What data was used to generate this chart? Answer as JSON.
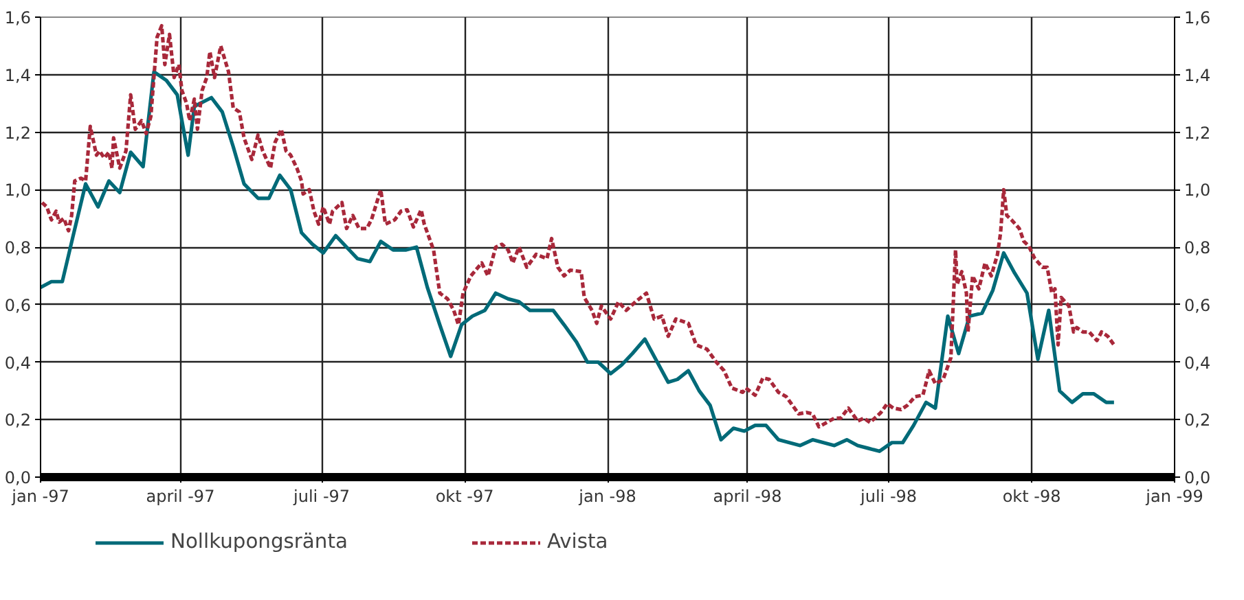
{
  "chart_data": {
    "type": "line",
    "xlim": [
      "1997-01-01",
      "1999-01-01"
    ],
    "xticks": [
      {
        "value": "1997-01-01",
        "label": "jan -97"
      },
      {
        "value": "1997-04-01",
        "label": "april -97"
      },
      {
        "value": "1997-07-01",
        "label": "juli -97"
      },
      {
        "value": "1997-10-01",
        "label": "okt -97"
      },
      {
        "value": "1998-01-01",
        "label": "jan -98"
      },
      {
        "value": "1998-04-01",
        "label": "april -98"
      },
      {
        "value": "1998-07-01",
        "label": "juli -98"
      },
      {
        "value": "1998-10-01",
        "label": "okt -98"
      },
      {
        "value": "1999-01-01",
        "label": "jan -99"
      }
    ],
    "ylim": [
      0,
      1.6
    ],
    "yticks": [
      {
        "value": 0,
        "label": "0,0"
      },
      {
        "value": 0.2,
        "label": "0,2"
      },
      {
        "value": 0.4,
        "label": "0,4"
      },
      {
        "value": 0.6,
        "label": "0,6"
      },
      {
        "value": 0.8,
        "label": "0,8"
      },
      {
        "value": 1.0,
        "label": "1,0"
      },
      {
        "value": 1.2,
        "label": "1,2"
      },
      {
        "value": 1.4,
        "label": "1,4"
      },
      {
        "value": 1.6,
        "label": "1,6"
      }
    ],
    "y2lim": [
      0,
      1.6
    ],
    "y2ticks": [
      {
        "value": 0,
        "label": "0,0"
      },
      {
        "value": 0.2,
        "label": "0,2"
      },
      {
        "value": 0.4,
        "label": "0,4"
      },
      {
        "value": 0.6,
        "label": "0,6"
      },
      {
        "value": 0.8,
        "label": "0,8"
      },
      {
        "value": 1.0,
        "label": "1,0"
      },
      {
        "value": 1.2,
        "label": "1,2"
      },
      {
        "value": 1.4,
        "label": "1,4"
      },
      {
        "value": 1.6,
        "label": "1,6"
      }
    ],
    "grid": true,
    "legend": "bottom",
    "marker": "none",
    "series": [
      {
        "name": "Nollkupongsränta",
        "color": "#006a78",
        "line_style": "solid",
        "x": [
          "1997-01-01",
          "1997-01-08",
          "1997-01-15",
          "1997-01-22",
          "1997-01-30",
          "1997-02-07",
          "1997-02-14",
          "1997-02-21",
          "1997-02-28",
          "1997-03-08",
          "1997-03-15",
          "1997-03-23",
          "1997-03-30",
          "1997-04-06",
          "1997-04-10",
          "1997-04-21",
          "1997-04-28",
          "1997-05-05",
          "1997-05-12",
          "1997-05-21",
          "1997-05-28",
          "1997-06-04",
          "1997-06-11",
          "1997-06-18",
          "1997-06-25",
          "1997-07-02",
          "1997-07-10",
          "1997-07-17",
          "1997-07-24",
          "1997-08-01",
          "1997-08-08",
          "1997-08-16",
          "1997-08-24",
          "1997-08-31",
          "1997-09-07",
          "1997-09-15",
          "1997-09-22",
          "1997-09-29",
          "1997-10-06",
          "1997-10-14",
          "1997-10-21",
          "1997-10-29",
          "1997-11-05",
          "1997-11-12",
          "1997-11-20",
          "1997-11-27",
          "1997-12-04",
          "1997-12-12",
          "1997-12-19",
          "1997-12-26",
          "1998-01-03",
          "1998-01-10",
          "1998-01-17",
          "1998-01-25",
          "1998-02-02",
          "1998-02-09",
          "1998-02-15",
          "1998-02-22",
          "1998-03-01",
          "1998-03-08",
          "1998-03-15",
          "1998-03-23",
          "1998-03-30",
          "1998-04-06",
          "1998-04-13",
          "1998-04-21",
          "1998-04-28",
          "1998-05-05",
          "1998-05-13",
          "1998-05-20",
          "1998-05-27",
          "1998-06-04",
          "1998-06-11",
          "1998-06-18",
          "1998-06-25",
          "1998-07-03",
          "1998-07-10",
          "1998-07-17",
          "1998-07-25",
          "1998-07-31",
          "1998-08-08",
          "1998-08-15",
          "1998-08-22",
          "1998-08-30",
          "1998-09-06",
          "1998-09-13",
          "1998-09-20",
          "1998-09-28",
          "1998-10-05",
          "1998-10-12",
          "1998-10-19",
          "1998-10-27",
          "1998-11-03",
          "1998-11-10",
          "1998-11-18",
          "1998-11-23"
        ],
        "values": [
          0.66,
          0.68,
          0.68,
          0.84,
          1.02,
          0.94,
          1.03,
          0.99,
          1.13,
          1.08,
          1.41,
          1.38,
          1.33,
          1.12,
          1.29,
          1.32,
          1.27,
          1.15,
          1.02,
          0.97,
          0.97,
          1.05,
          1.0,
          0.85,
          0.81,
          0.78,
          0.84,
          0.8,
          0.76,
          0.75,
          0.82,
          0.79,
          0.79,
          0.8,
          0.66,
          0.53,
          0.42,
          0.53,
          0.56,
          0.58,
          0.64,
          0.62,
          0.61,
          0.58,
          0.58,
          0.58,
          0.53,
          0.47,
          0.4,
          0.4,
          0.36,
          0.39,
          0.43,
          0.48,
          0.4,
          0.33,
          0.34,
          0.37,
          0.3,
          0.25,
          0.13,
          0.17,
          0.16,
          0.18,
          0.18,
          0.13,
          0.12,
          0.11,
          0.13,
          0.12,
          0.11,
          0.13,
          0.11,
          0.1,
          0.09,
          0.12,
          0.12,
          0.18,
          0.26,
          0.24,
          0.56,
          0.43,
          0.56,
          0.57,
          0.65,
          0.78,
          0.71,
          0.64,
          0.41,
          0.58,
          0.3,
          0.26,
          0.29,
          0.29,
          0.26,
          0.26
        ]
      },
      {
        "name": "Avista",
        "color": "#a8283a",
        "line_style": "dashed",
        "x": [
          "1997-01-02",
          "1997-01-05",
          "1997-01-08",
          "1997-01-11",
          "1997-01-13",
          "1997-01-16",
          "1997-01-19",
          "1997-01-21",
          "1997-01-23",
          "1997-01-27",
          "1997-01-30",
          "1997-02-02",
          "1997-02-06",
          "1997-02-08",
          "1997-02-11",
          "1997-02-14",
          "1997-02-16",
          "1997-02-17",
          "1997-02-21",
          "1997-02-25",
          "1997-02-28",
          "1997-03-03",
          "1997-03-07",
          "1997-03-10",
          "1997-03-13",
          "1997-03-17",
          "1997-03-20",
          "1997-03-22",
          "1997-03-25",
          "1997-03-28",
          "1997-03-31",
          "1997-04-02",
          "1997-04-05",
          "1997-04-07",
          "1997-04-10",
          "1997-04-12",
          "1997-04-15",
          "1997-04-18",
          "1997-04-20",
          "1997-04-23",
          "1997-04-27",
          "1997-05-02",
          "1997-05-05",
          "1997-05-09",
          "1997-05-12",
          "1997-05-17",
          "1997-05-21",
          "1997-05-24",
          "1997-05-29",
          "1997-06-01",
          "1997-06-05",
          "1997-06-08",
          "1997-06-11",
          "1997-06-15",
          "1997-06-18",
          "1997-06-19",
          "1997-06-23",
          "1997-06-26",
          "1997-06-29",
          "1997-07-02",
          "1997-07-06",
          "1997-07-08",
          "1997-07-14",
          "1997-07-17",
          "1997-07-21",
          "1997-07-25",
          "1997-07-30",
          "1997-08-02",
          "1997-08-08",
          "1997-08-11",
          "1997-08-17",
          "1997-08-21",
          "1997-08-25",
          "1997-08-29",
          "1997-09-03",
          "1997-09-05",
          "1997-09-11",
          "1997-09-15",
          "1997-09-20",
          "1997-09-24",
          "1997-09-27",
          "1997-09-30",
          "1997-10-05",
          "1997-10-12",
          "1997-10-16",
          "1997-10-21",
          "1997-10-25",
          "1997-10-29",
          "1997-11-01",
          "1997-11-05",
          "1997-11-10",
          "1997-11-16",
          "1997-11-23",
          "1997-11-26",
          "1997-11-30",
          "1997-12-04",
          "1997-12-08",
          "1997-12-15",
          "1997-12-17",
          "1997-12-22",
          "1997-12-25",
          "1997-12-28",
          "1998-01-03",
          "1998-01-08",
          "1998-01-13",
          "1998-01-19",
          "1998-01-26",
          "1998-01-31",
          "1998-02-05",
          "1998-02-09",
          "1998-02-14",
          "1998-02-22",
          "1998-02-27",
          "1998-03-06",
          "1998-03-12",
          "1998-03-17",
          "1998-03-22",
          "1998-03-29",
          "1998-03-31",
          "1998-04-06",
          "1998-04-11",
          "1998-04-15",
          "1998-04-21",
          "1998-04-26",
          "1998-05-04",
          "1998-05-09",
          "1998-05-13",
          "1998-05-17",
          "1998-05-22",
          "1998-05-27",
          "1998-05-31",
          "1998-06-05",
          "1998-06-11",
          "1998-06-15",
          "1998-06-19",
          "1998-06-26",
          "1998-06-30",
          "1998-07-04",
          "1998-07-09",
          "1998-07-13",
          "1998-07-18",
          "1998-07-23",
          "1998-07-27",
          "1998-07-31",
          "1998-08-05",
          "1998-08-10",
          "1998-08-13",
          "1998-08-14",
          "1998-08-17",
          "1998-08-20",
          "1998-08-21",
          "1998-08-24",
          "1998-08-28",
          "1998-09-01",
          "1998-09-05",
          "1998-09-09",
          "1998-09-11",
          "1998-09-13",
          "1998-09-15",
          "1998-09-18",
          "1998-09-23",
          "1998-09-26",
          "1998-09-29",
          "1998-10-03",
          "1998-10-08",
          "1998-10-11",
          "1998-10-14",
          "1998-10-16",
          "1998-10-18",
          "1998-10-20",
          "1998-10-25",
          "1998-10-28",
          "1998-10-30",
          "1998-11-03",
          "1998-11-07",
          "1998-11-12",
          "1998-11-15",
          "1998-11-19",
          "1998-11-23"
        ],
        "values": [
          0.955,
          0.94,
          0.895,
          0.925,
          0.887,
          0.9,
          0.857,
          0.91,
          1.03,
          1.04,
          1.03,
          1.22,
          1.12,
          1.135,
          1.11,
          1.13,
          1.075,
          1.18,
          1.075,
          1.135,
          1.33,
          1.21,
          1.24,
          1.195,
          1.255,
          1.53,
          1.57,
          1.435,
          1.54,
          1.39,
          1.435,
          1.345,
          1.3,
          1.24,
          1.315,
          1.21,
          1.345,
          1.39,
          1.48,
          1.39,
          1.5,
          1.41,
          1.285,
          1.27,
          1.18,
          1.105,
          1.19,
          1.135,
          1.075,
          1.165,
          1.21,
          1.135,
          1.12,
          1.075,
          1.03,
          0.985,
          1.0,
          0.925,
          0.88,
          0.94,
          0.88,
          0.925,
          0.955,
          0.865,
          0.91,
          0.865,
          0.865,
          0.895,
          1.0,
          0.88,
          0.895,
          0.925,
          0.93,
          0.87,
          0.93,
          0.88,
          0.79,
          0.64,
          0.62,
          0.58,
          0.53,
          0.64,
          0.7,
          0.745,
          0.7,
          0.8,
          0.81,
          0.79,
          0.745,
          0.8,
          0.73,
          0.775,
          0.76,
          0.83,
          0.73,
          0.7,
          0.72,
          0.715,
          0.625,
          0.58,
          0.535,
          0.595,
          0.55,
          0.61,
          0.58,
          0.61,
          0.64,
          0.55,
          0.56,
          0.49,
          0.55,
          0.535,
          0.46,
          0.445,
          0.4,
          0.37,
          0.31,
          0.295,
          0.31,
          0.285,
          0.345,
          0.34,
          0.295,
          0.28,
          0.22,
          0.225,
          0.22,
          0.175,
          0.19,
          0.205,
          0.205,
          0.24,
          0.195,
          0.205,
          0.19,
          0.225,
          0.255,
          0.24,
          0.235,
          0.25,
          0.28,
          0.285,
          0.37,
          0.325,
          0.34,
          0.415,
          0.79,
          0.67,
          0.715,
          0.64,
          0.505,
          0.7,
          0.655,
          0.745,
          0.7,
          0.775,
          0.85,
          1.0,
          0.91,
          0.895,
          0.865,
          0.82,
          0.805,
          0.76,
          0.73,
          0.73,
          0.64,
          0.655,
          0.46,
          0.625,
          0.595,
          0.505,
          0.52,
          0.505,
          0.505,
          0.475,
          0.505,
          0.49,
          0.46
        ]
      }
    ]
  }
}
